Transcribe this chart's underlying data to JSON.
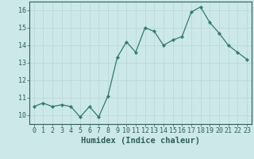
{
  "x": [
    0,
    1,
    2,
    3,
    4,
    5,
    6,
    7,
    8,
    9,
    10,
    11,
    12,
    13,
    14,
    15,
    16,
    17,
    18,
    19,
    20,
    21,
    22,
    23
  ],
  "y": [
    10.5,
    10.7,
    10.5,
    10.6,
    10.5,
    9.9,
    10.5,
    9.9,
    11.1,
    13.3,
    14.2,
    13.6,
    15.0,
    14.8,
    14.0,
    14.3,
    14.5,
    15.9,
    16.2,
    15.3,
    14.7,
    14.0,
    13.6,
    13.2
  ],
  "xlabel": "Humidex (Indice chaleur)",
  "ylim": [
    9.5,
    16.5
  ],
  "xlim": [
    -0.5,
    23.5
  ],
  "yticks": [
    10,
    11,
    12,
    13,
    14,
    15,
    16
  ],
  "xticks": [
    0,
    1,
    2,
    3,
    4,
    5,
    6,
    7,
    8,
    9,
    10,
    11,
    12,
    13,
    14,
    15,
    16,
    17,
    18,
    19,
    20,
    21,
    22,
    23
  ],
  "line_color": "#2e7d6e",
  "marker_color": "#2e7d6e",
  "bg_color": "#cce8e8",
  "grid_color": "#b8d4d4",
  "tick_color": "#2e5f5a",
  "label_color": "#2e5f5a",
  "xlabel_fontsize": 7.5,
  "tick_fontsize": 6.0,
  "spine_color": "#2e5f5a"
}
